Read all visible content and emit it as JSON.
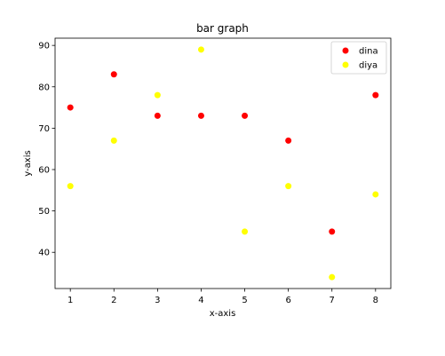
{
  "chart_data": {
    "type": "scatter",
    "title": "bar graph",
    "xlabel": "x-axis",
    "ylabel": "y-axis",
    "x": [
      1,
      2,
      3,
      4,
      5,
      6,
      7,
      8
    ],
    "xlim": [
      0.65,
      8.35
    ],
    "ylim": [
      31.25,
      91.75
    ],
    "xticks": [
      1,
      2,
      3,
      4,
      5,
      6,
      7,
      8
    ],
    "yticks": [
      40,
      50,
      60,
      70,
      80,
      90
    ],
    "grid": false,
    "legend_position": "top-right",
    "series": [
      {
        "name": "dina",
        "color": "#ff0000",
        "values": [
          75,
          83,
          73,
          73,
          73,
          67,
          45,
          78
        ]
      },
      {
        "name": "diya",
        "color": "#ffff00",
        "values": [
          56,
          67,
          78,
          89,
          45,
          56,
          34,
          54
        ]
      }
    ]
  }
}
